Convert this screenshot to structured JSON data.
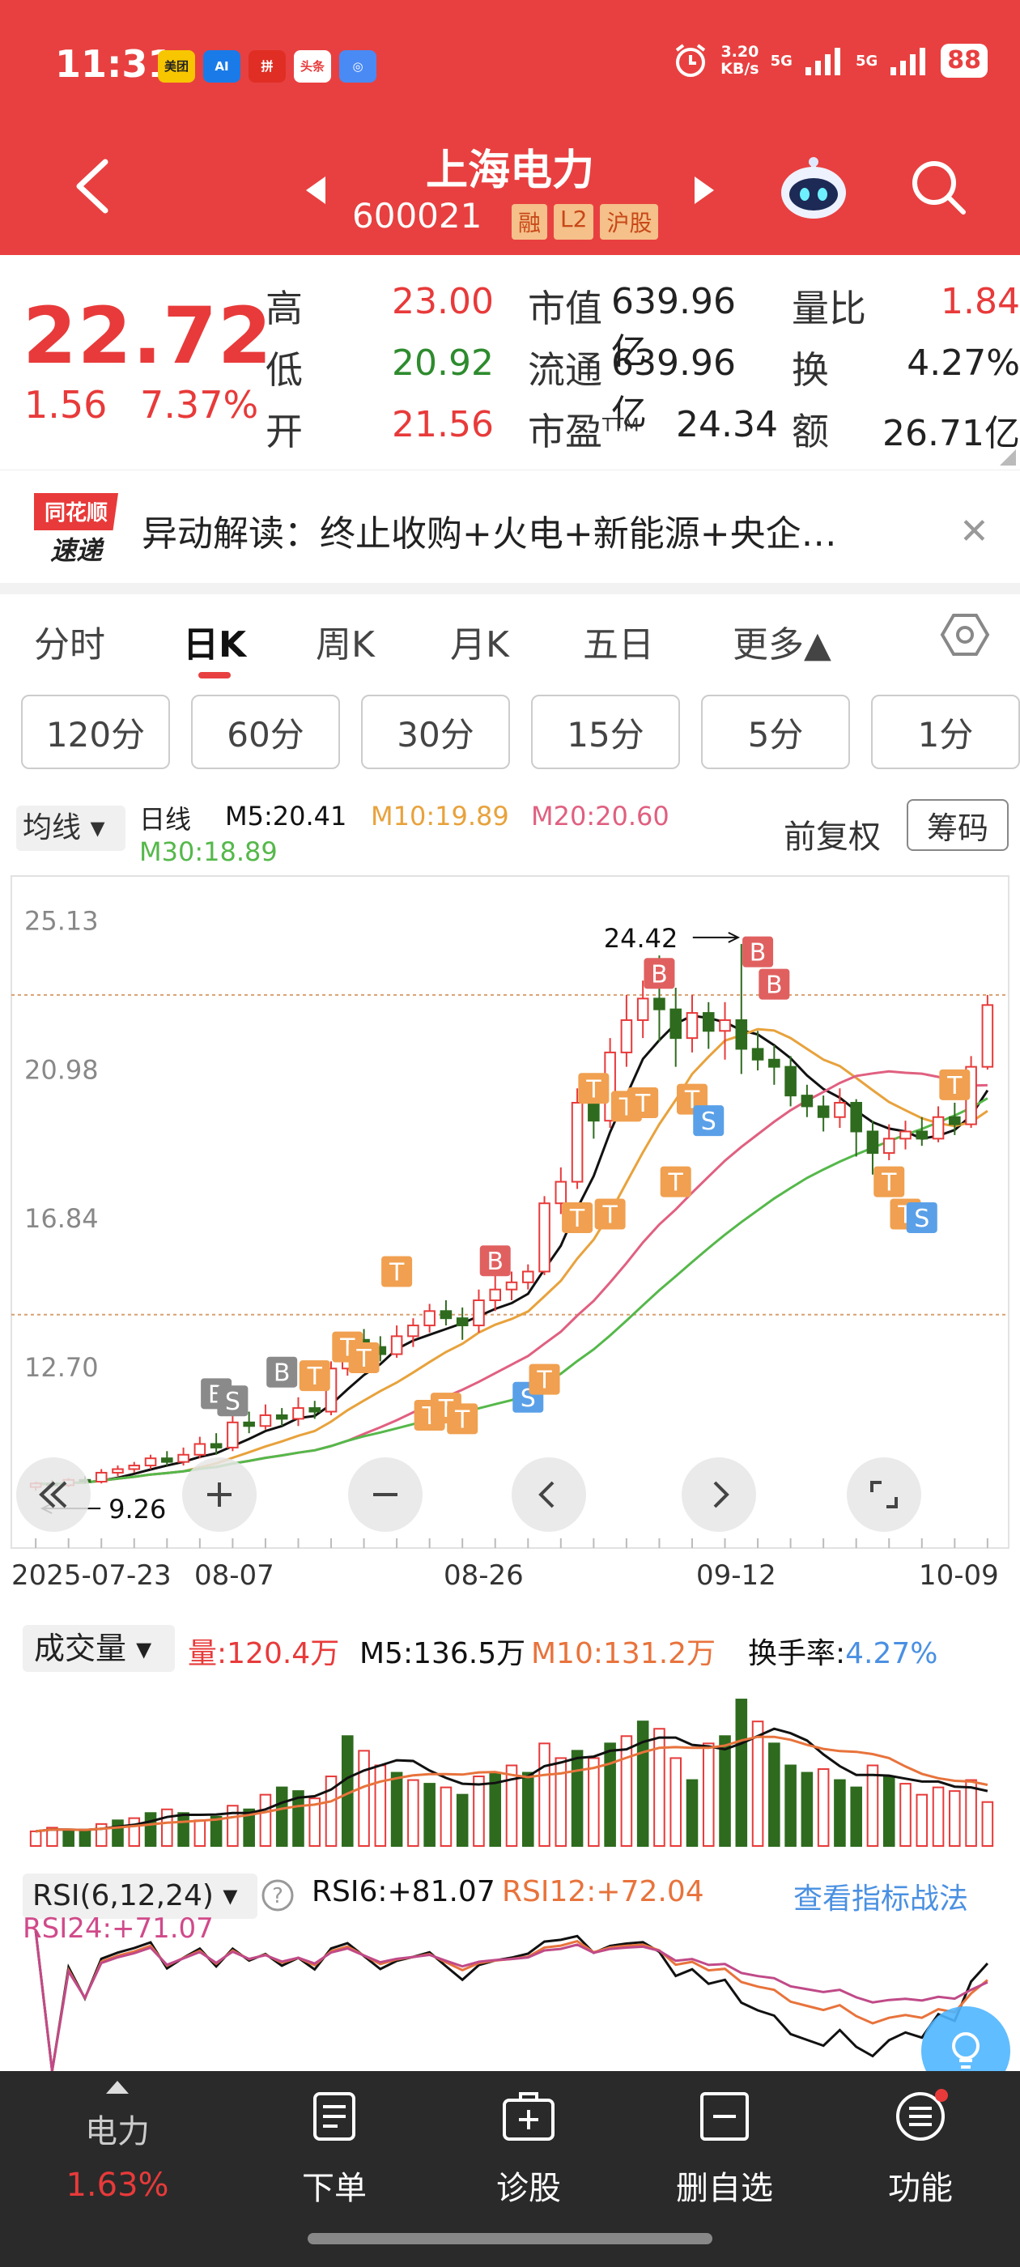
{
  "status_bar": {
    "time": "11:31",
    "apps": [
      {
        "name": "美团",
        "color": "#f7c600"
      },
      {
        "name": "AI",
        "color": "#1a7be8"
      },
      {
        "name": "拼",
        "color": "#e02e24"
      },
      {
        "name": "头条",
        "color": "#e83a3a"
      },
      {
        "name": "◎",
        "color": "#4a8af4"
      }
    ],
    "speed_value": "3.20",
    "speed_unit": "KB/s",
    "net1": "5G",
    "net2": "5G",
    "battery": "88"
  },
  "header": {
    "stock_name": "上海电力",
    "stock_code": "600021",
    "badges": [
      "融",
      "L2",
      "沪股"
    ]
  },
  "quote": {
    "price": "22.72",
    "change": "1.56",
    "change_pct": "7.37%",
    "high_label": "高",
    "high": "23.00",
    "low_label": "低",
    "low": "20.92",
    "open_label": "开",
    "open": "21.56",
    "mktcap_label": "市值",
    "mktcap": "639.96亿",
    "float_label": "流通",
    "float": "639.96亿",
    "pe_label": "市盈",
    "pe_sup": "TTM",
    "pe": "24.34",
    "vr_label": "量比",
    "vr": "1.84",
    "turn_label": "换",
    "turn": "4.27%",
    "amount_label": "额",
    "amount": "26.71亿"
  },
  "news": {
    "logo_line1": "同花顺",
    "logo_line2": "速递",
    "text": "异动解读：终止收购+火电+新能源+央企…"
  },
  "period_tabs": [
    "分时",
    "日K",
    "周K",
    "月K",
    "五日",
    "更多▲"
  ],
  "minute_tabs": [
    "120分",
    "60分",
    "30分",
    "15分",
    "5分",
    "1分"
  ],
  "indicators": {
    "ma_select": "均线",
    "type": "日线",
    "m5": "M5:20.41",
    "m10": "M10:19.89",
    "m20": "M20:20.60",
    "m30": "M30:18.89",
    "adjust": "前复权",
    "chips": "筹码",
    "colors": {
      "m5": "#111111",
      "m10": "#e8a23c",
      "m20": "#e06080",
      "m30": "#55b84a",
      "up": "#e83a3a",
      "down": "#2e6b1e"
    }
  },
  "chart_data": {
    "type": "candlestick",
    "yticks": [
      "25.13",
      "20.98",
      "16.84",
      "12.70"
    ],
    "ylim": [
      9.0,
      25.5
    ],
    "max_label": "24.42",
    "min_label": "9.26",
    "x_labels": [
      "2025-07-23",
      "08-07",
      "08-26",
      "09-12",
      "10-09"
    ],
    "candles": [
      [
        9.3,
        9.4,
        9.2,
        9.45
      ],
      [
        9.4,
        9.35,
        9.3,
        9.5
      ],
      [
        9.35,
        9.5,
        9.3,
        9.55
      ],
      [
        9.5,
        9.45,
        9.4,
        9.6
      ],
      [
        9.45,
        9.7,
        9.4,
        9.8
      ],
      [
        9.7,
        9.8,
        9.6,
        9.9
      ],
      [
        9.8,
        9.9,
        9.7,
        10.0
      ],
      [
        9.9,
        10.1,
        9.8,
        10.2
      ],
      [
        10.1,
        10.0,
        9.9,
        10.3
      ],
      [
        10.0,
        10.2,
        9.9,
        10.4
      ],
      [
        10.2,
        10.5,
        10.1,
        10.7
      ],
      [
        10.5,
        10.4,
        10.2,
        10.8
      ],
      [
        10.4,
        11.1,
        10.3,
        11.3
      ],
      [
        11.1,
        11.0,
        10.8,
        11.4
      ],
      [
        11.0,
        11.3,
        10.9,
        11.6
      ],
      [
        11.3,
        11.2,
        11.0,
        11.5
      ],
      [
        11.2,
        11.5,
        11.0,
        11.8
      ],
      [
        11.5,
        11.4,
        11.2,
        11.7
      ],
      [
        11.4,
        12.6,
        11.3,
        12.8
      ],
      [
        12.6,
        13.4,
        12.4,
        13.6
      ],
      [
        13.4,
        13.2,
        12.9,
        13.7
      ],
      [
        13.2,
        13.0,
        12.8,
        13.5
      ],
      [
        13.0,
        13.5,
        12.9,
        13.8
      ],
      [
        13.5,
        13.8,
        13.2,
        14.0
      ],
      [
        13.8,
        14.2,
        13.6,
        14.4
      ],
      [
        14.2,
        14.0,
        13.8,
        14.5
      ],
      [
        14.0,
        13.8,
        13.4,
        14.3
      ],
      [
        13.8,
        14.5,
        13.6,
        14.8
      ],
      [
        14.5,
        14.8,
        14.2,
        15.2
      ],
      [
        14.8,
        15.0,
        14.5,
        15.3
      ],
      [
        15.0,
        15.3,
        14.8,
        15.5
      ],
      [
        15.3,
        17.2,
        15.2,
        17.4
      ],
      [
        17.2,
        17.8,
        16.9,
        18.2
      ],
      [
        17.8,
        20.0,
        17.6,
        20.4
      ],
      [
        20.0,
        19.5,
        19.0,
        20.5
      ],
      [
        19.5,
        21.4,
        19.3,
        21.8
      ],
      [
        21.4,
        22.3,
        21.0,
        23.0
      ],
      [
        22.3,
        22.9,
        21.8,
        23.4
      ],
      [
        22.9,
        22.6,
        21.7,
        24.1
      ],
      [
        22.6,
        21.8,
        21.0,
        23.2
      ],
      [
        21.8,
        22.5,
        21.4,
        23.0
      ],
      [
        22.5,
        22.0,
        21.5,
        22.8
      ],
      [
        22.0,
        22.3,
        21.2,
        22.8
      ],
      [
        22.3,
        21.5,
        20.8,
        24.42
      ],
      [
        21.5,
        21.2,
        20.9,
        22.0
      ],
      [
        21.2,
        21.0,
        20.5,
        21.6
      ],
      [
        21.0,
        20.2,
        19.9,
        21.3
      ],
      [
        20.2,
        19.9,
        19.6,
        20.5
      ],
      [
        19.9,
        19.6,
        19.2,
        20.2
      ],
      [
        19.6,
        20.0,
        19.3,
        20.4
      ],
      [
        20.0,
        19.2,
        18.5,
        20.1
      ],
      [
        19.2,
        18.6,
        18.0,
        19.5
      ],
      [
        18.6,
        19.0,
        18.4,
        19.4
      ],
      [
        19.0,
        19.2,
        18.7,
        19.5
      ],
      [
        19.2,
        19.0,
        18.8,
        19.6
      ],
      [
        19.0,
        19.6,
        18.9,
        19.9
      ],
      [
        19.6,
        19.4,
        19.1,
        20.0
      ],
      [
        19.4,
        21.0,
        19.3,
        21.3
      ],
      [
        21.0,
        22.72,
        20.92,
        23.0
      ]
    ],
    "markers": [
      {
        "i": 11,
        "t": "B",
        "price": 11.9,
        "style": "gray"
      },
      {
        "i": 12,
        "t": "S",
        "price": 11.7,
        "style": "gray"
      },
      {
        "i": 15,
        "t": "B",
        "price": 12.5,
        "style": "gray"
      },
      {
        "i": 17,
        "t": "T",
        "price": 12.4,
        "style": "orange"
      },
      {
        "i": 19,
        "t": "T",
        "price": 13.2,
        "style": "orange"
      },
      {
        "i": 20,
        "t": "T",
        "price": 12.9,
        "style": "orange"
      },
      {
        "i": 22,
        "t": "T",
        "price": 15.3,
        "style": "orange"
      },
      {
        "i": 24,
        "t": "T",
        "price": 11.3,
        "style": "orange"
      },
      {
        "i": 25,
        "t": "T",
        "price": 11.5,
        "style": "orange"
      },
      {
        "i": 26,
        "t": "T",
        "price": 11.2,
        "style": "orange"
      },
      {
        "i": 28,
        "t": "B",
        "price": 15.6,
        "style": "red"
      },
      {
        "i": 30,
        "t": "S",
        "price": 11.8,
        "style": "blue"
      },
      {
        "i": 31,
        "t": "T",
        "price": 12.3,
        "style": "orange"
      },
      {
        "i": 33,
        "t": "T",
        "price": 16.8,
        "style": "orange"
      },
      {
        "i": 34,
        "t": "T",
        "price": 20.4,
        "style": "orange"
      },
      {
        "i": 35,
        "t": "T",
        "price": 16.9,
        "style": "orange"
      },
      {
        "i": 36,
        "t": "T",
        "price": 19.9,
        "style": "orange"
      },
      {
        "i": 37,
        "t": "T",
        "price": 20.0,
        "style": "orange"
      },
      {
        "i": 38,
        "t": "B",
        "price": 23.6,
        "style": "red"
      },
      {
        "i": 39,
        "t": "T",
        "price": 17.8,
        "style": "orange"
      },
      {
        "i": 40,
        "t": "T",
        "price": 20.1,
        "style": "orange"
      },
      {
        "i": 41,
        "t": "S",
        "price": 19.5,
        "style": "blue"
      },
      {
        "i": 44,
        "t": "B",
        "price": 24.2,
        "style": "red"
      },
      {
        "i": 45,
        "t": "B",
        "price": 23.3,
        "style": "red"
      },
      {
        "i": 52,
        "t": "T",
        "price": 17.8,
        "style": "orange"
      },
      {
        "i": 53,
        "t": "T",
        "price": 16.9,
        "style": "orange"
      },
      {
        "i": 54,
        "t": "S",
        "price": 16.8,
        "style": "blue"
      },
      {
        "i": 56,
        "t": "T",
        "price": 20.5,
        "style": "orange"
      }
    ]
  },
  "volume": {
    "select": "成交量",
    "vol": "量:120.4万",
    "m5": "M5:136.5万",
    "m10": "M10:131.2万",
    "turn_label": "换手率:",
    "turn": "4.27%",
    "bars": [
      [
        20,
        0
      ],
      [
        25,
        0
      ],
      [
        22,
        1
      ],
      [
        20,
        1
      ],
      [
        30,
        0
      ],
      [
        35,
        1
      ],
      [
        38,
        0
      ],
      [
        45,
        1
      ],
      [
        50,
        0
      ],
      [
        45,
        1
      ],
      [
        35,
        0
      ],
      [
        40,
        1
      ],
      [
        55,
        0
      ],
      [
        50,
        1
      ],
      [
        70,
        0
      ],
      [
        80,
        1
      ],
      [
        75,
        1
      ],
      [
        65,
        0
      ],
      [
        95,
        0
      ],
      [
        150,
        1
      ],
      [
        130,
        0
      ],
      [
        110,
        0
      ],
      [
        100,
        1
      ],
      [
        90,
        0
      ],
      [
        85,
        1
      ],
      [
        80,
        0
      ],
      [
        70,
        1
      ],
      [
        95,
        0
      ],
      [
        100,
        1
      ],
      [
        110,
        0
      ],
      [
        100,
        1
      ],
      [
        140,
        0
      ],
      [
        120,
        0
      ],
      [
        130,
        1
      ],
      [
        120,
        0
      ],
      [
        140,
        1
      ],
      [
        150,
        0
      ],
      [
        170,
        1
      ],
      [
        160,
        0
      ],
      [
        120,
        0
      ],
      [
        90,
        1
      ],
      [
        140,
        0
      ],
      [
        150,
        1
      ],
      [
        200,
        1
      ],
      [
        170,
        0
      ],
      [
        140,
        1
      ],
      [
        110,
        1
      ],
      [
        100,
        1
      ],
      [
        105,
        0
      ],
      [
        90,
        1
      ],
      [
        80,
        1
      ],
      [
        110,
        0
      ],
      [
        95,
        1
      ],
      [
        85,
        0
      ],
      [
        70,
        0
      ],
      [
        80,
        0
      ],
      [
        75,
        0
      ],
      [
        90,
        0
      ],
      [
        60,
        0
      ]
    ]
  },
  "rsi": {
    "select": "RSI(6,12,24)",
    "rsi6": "RSI6:+81.07",
    "rsi12": "RSI12:+72.04",
    "rsi24": "RSI24:+71.07",
    "link": "查看指标战法"
  },
  "bottom_nav": [
    {
      "label": "电力",
      "sub": "1.63%"
    },
    {
      "label": "下单"
    },
    {
      "label": "诊股"
    },
    {
      "label": "删自选"
    },
    {
      "label": "功能"
    }
  ]
}
